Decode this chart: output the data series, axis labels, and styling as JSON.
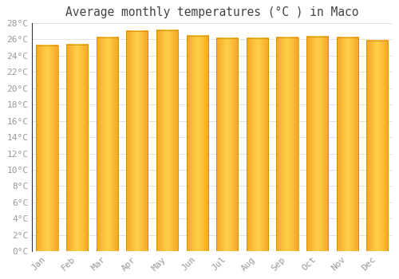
{
  "title": "Average monthly temperatures (°C ) in Maco",
  "months": [
    "Jan",
    "Feb",
    "Mar",
    "Apr",
    "May",
    "Jun",
    "Jul",
    "Aug",
    "Sep",
    "Oct",
    "Nov",
    "Dec"
  ],
  "values": [
    25.2,
    25.3,
    26.2,
    27.0,
    27.1,
    26.4,
    26.1,
    26.1,
    26.2,
    26.3,
    26.2,
    25.8
  ],
  "bar_color_left": "#F5A623",
  "bar_color_center": "#FFD04D",
  "bar_color_right": "#F5A623",
  "background_color": "#FFFFFF",
  "grid_color": "#DDDDDD",
  "ylim": [
    0,
    28
  ],
  "ytick_step": 2,
  "tick_label_color": "#999999",
  "title_color": "#444444",
  "title_fontsize": 10.5,
  "tick_fontsize": 8,
  "bar_edge_color": "#CC8800",
  "left_spine_color": "#333333"
}
